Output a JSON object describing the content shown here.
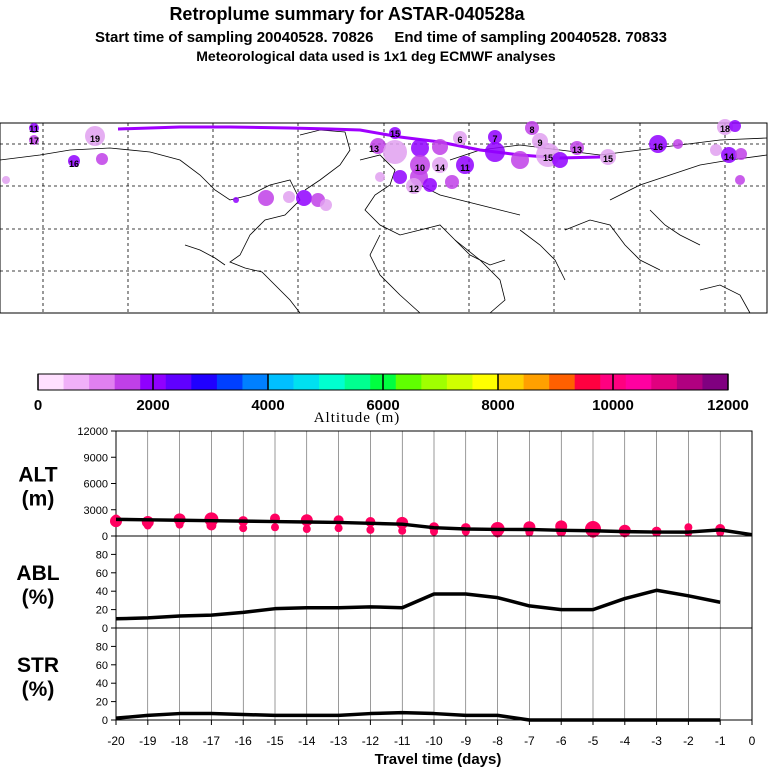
{
  "header": {
    "title": "Retroplume summary for ASTAR-040528a",
    "subtitle": "Start time of sampling 20040528. 70826     End time of sampling 20040528. 70833",
    "met_line": "Meteorological data used is 1x1 deg ECMWF analyses"
  },
  "colorbar": {
    "colors": [
      "#ffe0ff",
      "#f0b0f8",
      "#e080f0",
      "#c040e8",
      "#9000ff",
      "#6000ff",
      "#2000ff",
      "#0040ff",
      "#0080ff",
      "#00c0ff",
      "#00e0f0",
      "#00ffd0",
      "#00ff90",
      "#00ff40",
      "#60ff00",
      "#a0ff00",
      "#d0ff00",
      "#ffff00",
      "#ffd000",
      "#ffa000",
      "#ff6000",
      "#ff0040",
      "#ff0080",
      "#ff00a0",
      "#e0007f",
      "#b00080",
      "#800080"
    ],
    "tick_labels": [
      "0",
      "2000",
      "4000",
      "6000",
      "8000",
      "10000",
      "12000"
    ],
    "label": "Altitude (m)"
  },
  "map_labels": [
    "11",
    "17",
    "19",
    "16",
    "15",
    "13",
    "6",
    "7",
    "8",
    "9",
    "13",
    "15",
    "16",
    "10",
    "12",
    "14",
    "11",
    "15",
    "18",
    "14"
  ],
  "chart_data": [
    {
      "type": "line",
      "name": "ALT",
      "ylabel_line1": "ALT",
      "ylabel_line2": "(m)",
      "ylim": [
        0,
        12000
      ],
      "yticks": [
        "0",
        "3000",
        "6000",
        "9000",
        "12000"
      ],
      "ytick_values": [
        0,
        3000,
        6000,
        9000,
        12000
      ],
      "x": [
        -20,
        -19,
        -18,
        -17,
        -16,
        -15,
        -14,
        -13,
        -12,
        -11,
        -10,
        -9,
        -8,
        -7,
        -6,
        -5,
        -4,
        -3,
        -2,
        -1,
        0
      ],
      "values": [
        1900,
        1850,
        1800,
        1750,
        1700,
        1650,
        1600,
        1550,
        1450,
        1350,
        950,
        800,
        750,
        750,
        650,
        600,
        500,
        450,
        450,
        700,
        150
      ],
      "cluster_points": [
        {
          "x": -20,
          "y": 1700,
          "s": 6
        },
        {
          "x": -20,
          "y": 2000,
          "s": 4
        },
        {
          "x": -19,
          "y": 1600,
          "s": 6
        },
        {
          "x": -19,
          "y": 1200,
          "s": 4
        },
        {
          "x": -18,
          "y": 1900,
          "s": 6
        },
        {
          "x": -18,
          "y": 1300,
          "s": 4
        },
        {
          "x": -17,
          "y": 1900,
          "s": 7
        },
        {
          "x": -17,
          "y": 1200,
          "s": 5
        },
        {
          "x": -16,
          "y": 1700,
          "s": 5
        },
        {
          "x": -16,
          "y": 900,
          "s": 4
        },
        {
          "x": -15,
          "y": 2000,
          "s": 5
        },
        {
          "x": -15,
          "y": 1000,
          "s": 4
        },
        {
          "x": -14,
          "y": 1800,
          "s": 6
        },
        {
          "x": -14,
          "y": 800,
          "s": 4
        },
        {
          "x": -13,
          "y": 1800,
          "s": 5
        },
        {
          "x": -13,
          "y": 900,
          "s": 4
        },
        {
          "x": -12,
          "y": 1600,
          "s": 5
        },
        {
          "x": -12,
          "y": 700,
          "s": 4
        },
        {
          "x": -11,
          "y": 1500,
          "s": 6
        },
        {
          "x": -11,
          "y": 600,
          "s": 4
        },
        {
          "x": -10,
          "y": 1000,
          "s": 5
        },
        {
          "x": -10,
          "y": 500,
          "s": 4
        },
        {
          "x": -9,
          "y": 900,
          "s": 5
        },
        {
          "x": -9,
          "y": 500,
          "s": 4
        },
        {
          "x": -8,
          "y": 800,
          "s": 7
        },
        {
          "x": -8,
          "y": 400,
          "s": 5
        },
        {
          "x": -7,
          "y": 1000,
          "s": 6
        },
        {
          "x": -7,
          "y": 400,
          "s": 4
        },
        {
          "x": -6,
          "y": 1100,
          "s": 6
        },
        {
          "x": -6,
          "y": 500,
          "s": 5
        },
        {
          "x": -5,
          "y": 800,
          "s": 8
        },
        {
          "x": -5,
          "y": 500,
          "s": 6
        },
        {
          "x": -4,
          "y": 600,
          "s": 6
        },
        {
          "x": -4,
          "y": 300,
          "s": 4
        },
        {
          "x": -3,
          "y": 500,
          "s": 5
        },
        {
          "x": -2,
          "y": 1000,
          "s": 4
        },
        {
          "x": -2,
          "y": 400,
          "s": 4
        },
        {
          "x": -1,
          "y": 800,
          "s": 5
        },
        {
          "x": -1,
          "y": 400,
          "s": 4
        }
      ]
    },
    {
      "type": "line",
      "name": "ABL",
      "ylabel_line1": "ABL",
      "ylabel_line2": "(%)",
      "ylim": [
        0,
        100
      ],
      "yticks": [
        "0",
        "20",
        "40",
        "60",
        "80"
      ],
      "ytick_values": [
        0,
        20,
        40,
        60,
        80
      ],
      "x": [
        -20,
        -19,
        -18,
        -17,
        -16,
        -15,
        -14,
        -13,
        -12,
        -11,
        -10,
        -9,
        -8,
        -7,
        -6,
        -5,
        -4,
        -3,
        -2,
        -1
      ],
      "values": [
        10,
        11,
        13,
        14,
        17,
        21,
        22,
        22,
        23,
        22,
        37,
        37,
        33,
        24,
        20,
        20,
        32,
        41,
        35,
        28
      ]
    },
    {
      "type": "line",
      "name": "STR",
      "ylabel_line1": "STR",
      "ylabel_line2": "(%)",
      "ylim": [
        0,
        100
      ],
      "yticks": [
        "0",
        "20",
        "40",
        "60",
        "80"
      ],
      "ytick_values": [
        0,
        20,
        40,
        60,
        80
      ],
      "x": [
        -20,
        -19,
        -18,
        -17,
        -16,
        -15,
        -14,
        -13,
        -12,
        -11,
        -10,
        -9,
        -8,
        -7,
        -6,
        -5,
        -4,
        -3,
        -2,
        -1
      ],
      "values": [
        2,
        5,
        7,
        7,
        6,
        5,
        5,
        5,
        7,
        8,
        7,
        5,
        5,
        0,
        0,
        0,
        0,
        0,
        0,
        0
      ]
    }
  ],
  "xaxis": {
    "tick_labels": [
      "-20",
      "-19",
      "-18",
      "-17",
      "-16",
      "-15",
      "-14",
      "-13",
      "-12",
      "-11",
      "-10",
      "-9",
      "-8",
      "-7",
      "-6",
      "-5",
      "-4",
      "-3",
      "-2",
      "-1",
      "0"
    ],
    "label": "Travel time (days)"
  },
  "styles": {
    "line_color": "#000000",
    "cluster_color": "#ff0060",
    "plume_color": "#a000ff"
  }
}
